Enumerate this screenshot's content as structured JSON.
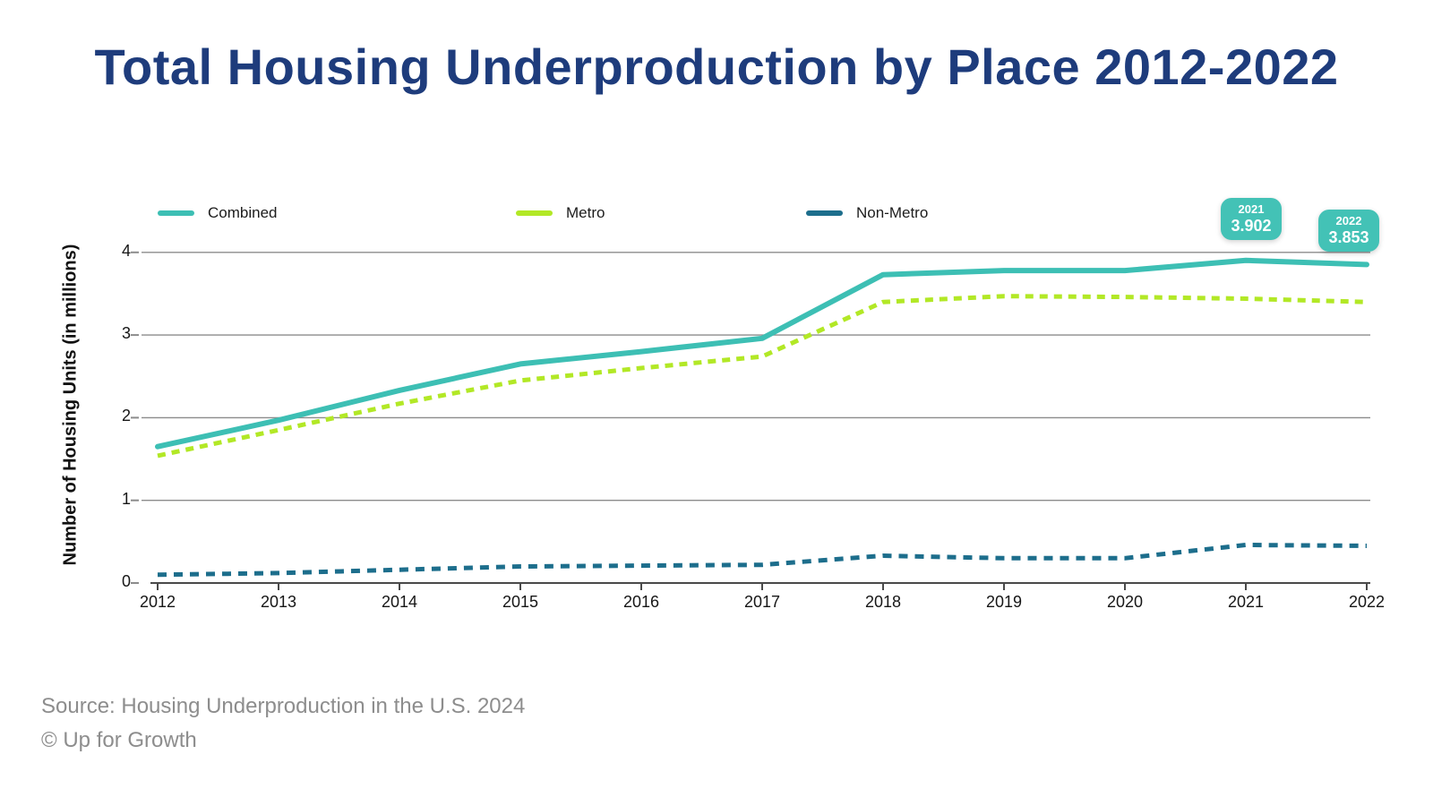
{
  "title": "Total Housing Underproduction by Place 2012-2022",
  "colors": {
    "title": "#1e3c7c",
    "combined": "#3dbfb4",
    "metro": "#b2e826",
    "non_metro": "#1d6e8c",
    "badge_bg": "#43c2b6",
    "badge_text": "#ffffff",
    "grid": "#8c8c8c",
    "axis": "#4a4a4a",
    "tick_text": "#161616",
    "source_text": "#8d8d8d"
  },
  "annotations": [
    {
      "year": "2021",
      "value": "3.902"
    },
    {
      "year": "2022",
      "value": "3.853"
    }
  ],
  "source": {
    "line1": "Source: Housing Underproduction in the U.S. 2024",
    "line2": "© Up for Growth"
  },
  "chart_data": {
    "type": "line",
    "x": [
      "2012",
      "2013",
      "2014",
      "2015",
      "2016",
      "2017",
      "2018",
      "2019",
      "2020",
      "2021",
      "2022"
    ],
    "series": [
      {
        "name": "Combined",
        "color": "#3dbfb4",
        "dash": "solid",
        "width": 6,
        "values": [
          1.65,
          1.97,
          2.33,
          2.65,
          2.8,
          2.96,
          3.73,
          3.78,
          3.78,
          3.902,
          3.853
        ]
      },
      {
        "name": "Metro",
        "color": "#b2e826",
        "dash": [
          9,
          7
        ],
        "width": 5,
        "values": [
          1.54,
          1.85,
          2.17,
          2.45,
          2.6,
          2.74,
          3.4,
          3.47,
          3.46,
          3.44,
          3.4
        ]
      },
      {
        "name": "Non-Metro",
        "color": "#1d6e8c",
        "dash": [
          10,
          8
        ],
        "width": 5,
        "values": [
          0.1,
          0.12,
          0.16,
          0.2,
          0.21,
          0.22,
          0.33,
          0.3,
          0.3,
          0.46,
          0.45
        ]
      }
    ],
    "ylabel": "Number of Housing Units (in millions)",
    "yticks": [
      0,
      1,
      2,
      3,
      4
    ],
    "ylim": [
      0,
      4
    ],
    "grid": true,
    "legend_position": "top"
  }
}
